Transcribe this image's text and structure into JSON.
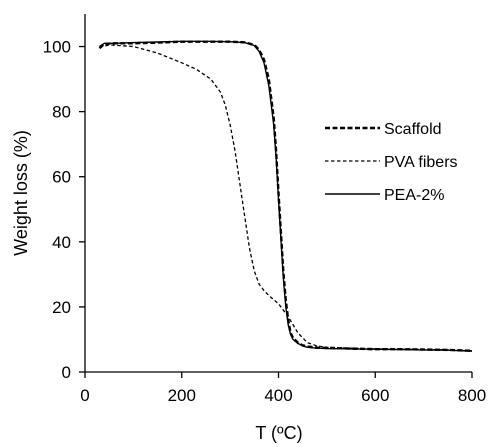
{
  "chart_data": {
    "type": "line",
    "xlabel": "T (ºC)",
    "ylabel": "Weight loss (%)",
    "xlim": [
      0,
      800
    ],
    "ylim": [
      0,
      110
    ],
    "x_ticks": [
      "0",
      "200",
      "400",
      "600",
      "800"
    ],
    "y_ticks": [
      "0",
      "20",
      "40",
      "60",
      "80",
      "100"
    ],
    "grid": false,
    "legend_position": "right",
    "series": [
      {
        "name": "Scaffold",
        "line_style": "bold-dashed",
        "x": [
          30,
          40,
          60,
          100,
          150,
          200,
          250,
          300,
          330,
          350,
          360,
          370,
          380,
          390,
          395,
          400,
          405,
          410,
          415,
          420,
          425,
          430,
          440,
          450,
          460,
          480,
          500,
          550,
          600,
          650,
          700,
          750,
          800
        ],
        "y": [
          99.5,
          100.8,
          101.0,
          101.0,
          101.2,
          101.5,
          101.5,
          101.5,
          101.3,
          100.5,
          99.0,
          96.0,
          90.0,
          78.0,
          68.0,
          55.0,
          43.0,
          31.0,
          22.0,
          16.0,
          12.0,
          10.5,
          9.0,
          8.2,
          7.8,
          7.5,
          7.4,
          7.2,
          7.0,
          7.0,
          6.9,
          6.8,
          6.5
        ]
      },
      {
        "name": "PVA fibers",
        "line_style": "thin-dashed",
        "x": [
          30,
          50,
          100,
          150,
          200,
          230,
          260,
          280,
          290,
          300,
          310,
          320,
          330,
          340,
          350,
          360,
          370,
          380,
          400,
          420,
          440,
          460,
          480,
          500,
          550,
          600,
          650,
          700,
          750,
          800
        ],
        "y": [
          99.8,
          100.5,
          100.0,
          98.0,
          95.0,
          93.0,
          90.0,
          86.0,
          82.0,
          76.0,
          68.0,
          58.0,
          48.0,
          38.0,
          31.0,
          27.0,
          25.0,
          23.5,
          21.0,
          17.0,
          12.0,
          9.0,
          8.0,
          7.6,
          7.3,
          7.1,
          7.0,
          6.9,
          6.8,
          6.5
        ]
      },
      {
        "name": "PEA-2%",
        "line_style": "solid",
        "x": [
          30,
          40,
          60,
          100,
          150,
          200,
          250,
          300,
          330,
          350,
          360,
          370,
          380,
          390,
          395,
          400,
          405,
          410,
          415,
          420,
          425,
          430,
          440,
          450,
          460,
          480,
          500,
          550,
          600,
          650,
          700,
          750,
          800
        ],
        "y": [
          100.0,
          101.0,
          101.0,
          101.2,
          101.4,
          101.6,
          101.6,
          101.5,
          101.2,
          100.3,
          98.5,
          95.0,
          88.0,
          76.0,
          66.0,
          53.0,
          41.0,
          29.0,
          20.0,
          14.5,
          11.5,
          10.0,
          8.8,
          8.0,
          7.6,
          7.3,
          7.2,
          7.1,
          7.0,
          6.9,
          6.8,
          6.7,
          6.4
        ]
      }
    ]
  }
}
